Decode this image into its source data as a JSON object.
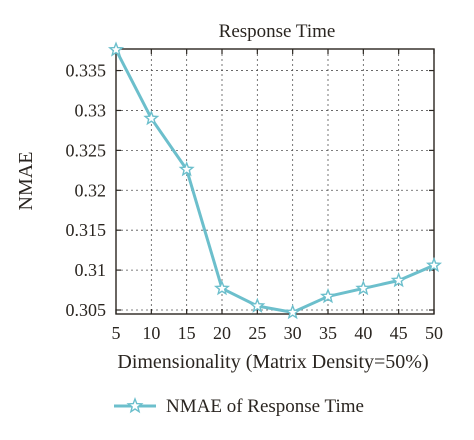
{
  "chart_data": {
    "type": "line",
    "title": "Response Time",
    "xlabel": "Dimensionality (Matrix Density=50%)",
    "ylabel": "NMAE",
    "x": [
      5,
      10,
      15,
      20,
      25,
      30,
      35,
      40,
      45,
      50
    ],
    "xticks": [
      "5",
      "10",
      "15",
      "20",
      "25",
      "30",
      "35",
      "40",
      "45",
      "50"
    ],
    "yticks": [
      "0.305",
      "0.31",
      "0.315",
      "0.32",
      "0.325",
      "0.33",
      "0.335"
    ],
    "ytick_values": [
      0.305,
      0.31,
      0.315,
      0.32,
      0.325,
      0.33,
      0.335
    ],
    "xlim": [
      5,
      50
    ],
    "ylim": [
      0.3045,
      0.3377
    ],
    "grid": "dotted",
    "legend_position": "bottom",
    "series": [
      {
        "name": "NMAE of Response Time",
        "marker": "star",
        "color": "#6cbfcc",
        "values": [
          0.3376,
          0.329,
          0.3226,
          0.3077,
          0.3055,
          0.3047,
          0.3067,
          0.3077,
          0.3087,
          0.3106
        ]
      }
    ]
  }
}
